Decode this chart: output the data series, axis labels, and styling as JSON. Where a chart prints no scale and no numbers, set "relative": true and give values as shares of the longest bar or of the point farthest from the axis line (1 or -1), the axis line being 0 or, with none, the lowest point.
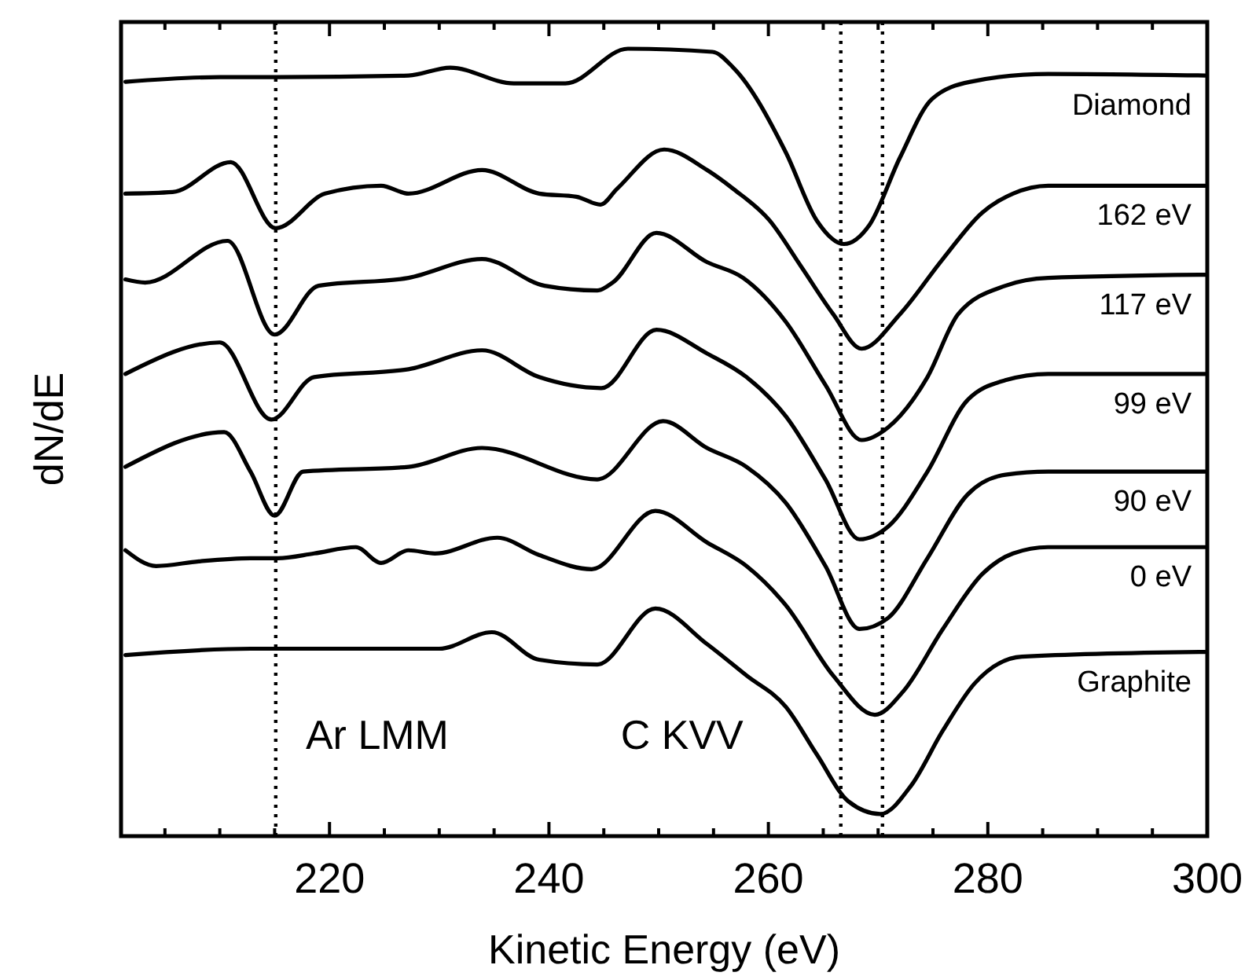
{
  "chart_data": {
    "type": "line",
    "xlabel": "Kinetic Energy (eV)",
    "ylabel": "dN/dE",
    "relative": true,
    "legend": false,
    "tick_labels": "x",
    "line_style": "solid",
    "marker": "none",
    "xlim": [
      201,
      300
    ],
    "xticks": [
      {
        "value": 205,
        "label": null
      },
      {
        "value": 210,
        "label": null
      },
      {
        "value": 215,
        "label": null
      },
      220,
      {
        "value": 225,
        "label": null
      },
      {
        "value": 230,
        "label": null
      },
      {
        "value": 235,
        "label": null
      },
      240,
      {
        "value": 245,
        "label": null
      },
      {
        "value": 250,
        "label": null
      },
      {
        "value": 255,
        "label": null
      },
      260,
      {
        "value": 265,
        "label": null
      },
      {
        "value": 270,
        "label": null
      },
      {
        "value": 275,
        "label": null
      },
      280,
      {
        "value": 285,
        "label": null
      },
      {
        "value": 290,
        "label": null
      },
      {
        "value": 295,
        "label": null
      },
      300
    ],
    "series": [
      {
        "name": "Diamond",
        "color": "#000000",
        "x": [
          201.4,
          210.0,
          215.3,
          227.2,
          231.0,
          236.8,
          241.5,
          247.2,
          254.9,
          256.8,
          261.6,
          264.4,
          266.9,
          269.2,
          272.0,
          274.9,
          278.4,
          285.5,
          299.8
        ],
        "values": [
          0.958,
          0.964,
          0.964,
          0.966,
          0.976,
          0.956,
          0.956,
          1.0,
          0.996,
          0.976,
          0.868,
          0.782,
          0.752,
          0.776,
          0.862,
          0.936,
          0.958,
          0.968,
          0.966
        ]
      },
      {
        "name": "162 eV",
        "color": "#000000",
        "x": [
          201.4,
          205.7,
          211.0,
          215.1,
          219.6,
          224.7,
          227.2,
          233.9,
          239.1,
          242.5,
          244.7,
          246.2,
          250.5,
          254.4,
          256.8,
          260.1,
          263.0,
          265.9,
          268.5,
          272.0,
          275.9,
          279.5,
          282.3,
          285.5,
          299.8
        ],
        "values": [
          0.816,
          0.818,
          0.856,
          0.772,
          0.816,
          0.826,
          0.816,
          0.846,
          0.816,
          0.812,
          0.802,
          0.822,
          0.872,
          0.846,
          0.822,
          0.782,
          0.723,
          0.663,
          0.619,
          0.663,
          0.733,
          0.792,
          0.816,
          0.826,
          0.826
        ]
      },
      {
        "name": "117 eV",
        "color": "#000000",
        "x": [
          201.4,
          203.2,
          210.7,
          215.0,
          219.0,
          227.2,
          233.9,
          239.6,
          244.4,
          245.8,
          249.8,
          254.4,
          257.7,
          261.6,
          265.2,
          268.5,
          270.9,
          274.5,
          277.3,
          281.6,
          285.5,
          299.8
        ],
        "values": [
          0.707,
          0.703,
          0.756,
          0.637,
          0.699,
          0.709,
          0.733,
          0.699,
          0.693,
          0.703,
          0.766,
          0.729,
          0.709,
          0.653,
          0.573,
          0.503,
          0.519,
          0.583,
          0.663,
          0.699,
          0.709,
          0.713
        ]
      },
      {
        "name": "99 eV",
        "color": "#000000",
        "x": [
          201.4,
          210.0,
          214.7,
          218.6,
          227.2,
          233.9,
          239.1,
          244.8,
          249.8,
          254.4,
          258.0,
          261.6,
          265.2,
          268.3,
          270.9,
          274.5,
          278.1,
          281.6,
          285.5,
          299.8
        ],
        "values": [
          0.587,
          0.627,
          0.529,
          0.583,
          0.593,
          0.617,
          0.583,
          0.569,
          0.643,
          0.613,
          0.583,
          0.533,
          0.453,
          0.377,
          0.393,
          0.463,
          0.553,
          0.579,
          0.587,
          0.587
        ]
      },
      {
        "name": "90 eV",
        "color": "#000000",
        "x": [
          201.4,
          210.4,
          212.8,
          215.0,
          217.6,
          227.2,
          233.9,
          244.4,
          250.4,
          254.4,
          258.0,
          261.6,
          265.2,
          268.3,
          270.9,
          274.5,
          278.1,
          281.6,
          285.5,
          299.8
        ],
        "values": [
          0.469,
          0.513,
          0.463,
          0.407,
          0.463,
          0.469,
          0.493,
          0.453,
          0.527,
          0.493,
          0.469,
          0.423,
          0.343,
          0.263,
          0.277,
          0.353,
          0.433,
          0.459,
          0.463,
          0.463
        ]
      },
      {
        "name": "0 eV",
        "color": "#000000",
        "x": [
          201.4,
          204.2,
          208.1,
          212.8,
          215.3,
          218.6,
          222.4,
          224.7,
          227.2,
          229.6,
          235.3,
          239.1,
          243.9,
          249.7,
          254.4,
          258.0,
          261.6,
          265.9,
          269.7,
          272.3,
          275.9,
          279.5,
          282.3,
          285.5,
          299.8
        ],
        "values": [
          0.363,
          0.343,
          0.349,
          0.353,
          0.353,
          0.359,
          0.367,
          0.347,
          0.363,
          0.359,
          0.379,
          0.357,
          0.339,
          0.413,
          0.373,
          0.343,
          0.293,
          0.204,
          0.154,
          0.184,
          0.263,
          0.333,
          0.359,
          0.367,
          0.367
        ]
      },
      {
        "name": "Graphite",
        "color": "#000000",
        "x": [
          201.4,
          212.8,
          222.4,
          230.0,
          234.8,
          239.1,
          244.4,
          249.7,
          254.4,
          258.0,
          261.6,
          264.4,
          267.3,
          270.2,
          273.0,
          275.9,
          278.8,
          283.1,
          299.8
        ],
        "values": [
          0.23,
          0.238,
          0.238,
          0.238,
          0.259,
          0.224,
          0.218,
          0.289,
          0.244,
          0.204,
          0.164,
          0.104,
          0.044,
          0.028,
          0.064,
          0.134,
          0.194,
          0.228,
          0.234
        ]
      }
    ],
    "ref_lines": [
      {
        "axis": "x",
        "value": 215.1,
        "line_style": "dotted",
        "color": "#000000"
      },
      {
        "axis": "x",
        "value": 266.6,
        "line_style": "dotted",
        "color": "#000000"
      },
      {
        "axis": "x",
        "value": 270.4,
        "line_style": "dotted",
        "color": "#000000"
      }
    ],
    "annotations": [
      "Ar LMM",
      "C KVV"
    ]
  }
}
